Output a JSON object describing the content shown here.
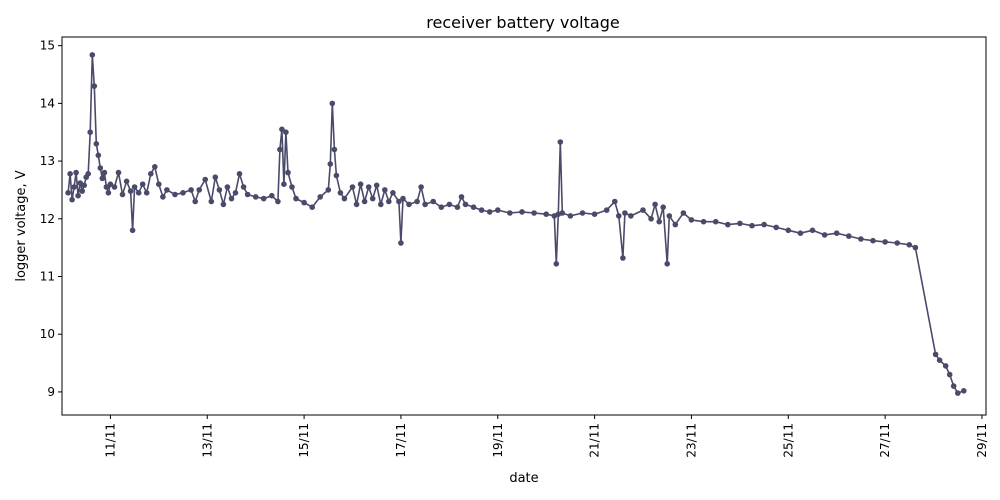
{
  "chart_data": {
    "type": "line",
    "title": "receiver battery voltage",
    "xlabel": "date",
    "ylabel": "logger voltage, V",
    "x_tick_labels": [
      "11/11",
      "13/11",
      "15/11",
      "17/11",
      "19/11",
      "21/11",
      "23/11",
      "25/11",
      "27/11",
      "29/11"
    ],
    "y_ticks": [
      9,
      10,
      11,
      12,
      13,
      14,
      15
    ],
    "xlim": [
      "10/11 00:00",
      "29/11 02:00"
    ],
    "ylim": [
      8.6,
      15.15
    ],
    "grid": false,
    "legend": "none",
    "marker": "circle",
    "colors": {
      "series": "#4a4a6a",
      "axis": "#000000"
    },
    "series": [
      {
        "values": [
          [
            "10/11 03:00",
            12.45
          ],
          [
            "10/11 04:00",
            12.78
          ],
          [
            "10/11 05:00",
            12.33
          ],
          [
            "10/11 06:00",
            12.55
          ],
          [
            "10/11 07:00",
            12.8
          ],
          [
            "10/11 08:00",
            12.4
          ],
          [
            "10/11 09:00",
            12.62
          ],
          [
            "10/11 10:00",
            12.48
          ],
          [
            "10/11 11:00",
            12.58
          ],
          [
            "10/11 12:00",
            12.72
          ],
          [
            "10/11 13:00",
            12.78
          ],
          [
            "10/11 14:00",
            13.5
          ],
          [
            "10/11 15:00",
            14.84
          ],
          [
            "10/11 16:00",
            14.3
          ],
          [
            "10/11 17:00",
            13.3
          ],
          [
            "10/11 18:00",
            13.1
          ],
          [
            "10/11 19:00",
            12.88
          ],
          [
            "10/11 20:00",
            12.7
          ],
          [
            "10/11 21:00",
            12.8
          ],
          [
            "10/11 22:00",
            12.55
          ],
          [
            "10/11 23:00",
            12.45
          ],
          [
            "11/11 00:00",
            12.6
          ],
          [
            "11/11 02:00",
            12.55
          ],
          [
            "11/11 04:00",
            12.8
          ],
          [
            "11/11 06:00",
            12.42
          ],
          [
            "11/11 08:00",
            12.65
          ],
          [
            "11/11 10:00",
            12.48
          ],
          [
            "11/11 11:00",
            11.8
          ],
          [
            "11/11 12:00",
            12.55
          ],
          [
            "11/11 14:00",
            12.45
          ],
          [
            "11/11 16:00",
            12.6
          ],
          [
            "11/11 18:00",
            12.45
          ],
          [
            "11/11 20:00",
            12.78
          ],
          [
            "11/11 22:00",
            12.9
          ],
          [
            "12/11 00:00",
            12.6
          ],
          [
            "12/11 02:00",
            12.38
          ],
          [
            "12/11 04:00",
            12.5
          ],
          [
            "12/11 08:00",
            12.42
          ],
          [
            "12/11 12:00",
            12.45
          ],
          [
            "12/11 16:00",
            12.5
          ],
          [
            "12/11 18:00",
            12.3
          ],
          [
            "12/11 20:00",
            12.5
          ],
          [
            "12/11 23:00",
            12.68
          ],
          [
            "13/11 02:00",
            12.3
          ],
          [
            "13/11 04:00",
            12.72
          ],
          [
            "13/11 06:00",
            12.5
          ],
          [
            "13/11 08:00",
            12.25
          ],
          [
            "13/11 10:00",
            12.55
          ],
          [
            "13/11 12:00",
            12.35
          ],
          [
            "13/11 14:00",
            12.45
          ],
          [
            "13/11 16:00",
            12.78
          ],
          [
            "13/11 18:00",
            12.55
          ],
          [
            "13/11 20:00",
            12.42
          ],
          [
            "14/11 00:00",
            12.38
          ],
          [
            "14/11 04:00",
            12.35
          ],
          [
            "14/11 08:00",
            12.4
          ],
          [
            "14/11 11:00",
            12.3
          ],
          [
            "14/11 12:00",
            13.2
          ],
          [
            "14/11 13:00",
            13.55
          ],
          [
            "14/11 14:00",
            12.6
          ],
          [
            "14/11 15:00",
            13.5
          ],
          [
            "14/11 16:00",
            12.8
          ],
          [
            "14/11 18:00",
            12.55
          ],
          [
            "14/11 20:00",
            12.35
          ],
          [
            "15/11 00:00",
            12.28
          ],
          [
            "15/11 04:00",
            12.2
          ],
          [
            "15/11 08:00",
            12.38
          ],
          [
            "15/11 12:00",
            12.5
          ],
          [
            "15/11 13:00",
            12.95
          ],
          [
            "15/11 14:00",
            14.0
          ],
          [
            "15/11 15:00",
            13.2
          ],
          [
            "15/11 16:00",
            12.75
          ],
          [
            "15/11 18:00",
            12.45
          ],
          [
            "15/11 20:00",
            12.35
          ],
          [
            "16/11 00:00",
            12.55
          ],
          [
            "16/11 02:00",
            12.25
          ],
          [
            "16/11 04:00",
            12.6
          ],
          [
            "16/11 06:00",
            12.3
          ],
          [
            "16/11 08:00",
            12.55
          ],
          [
            "16/11 10:00",
            12.35
          ],
          [
            "16/11 12:00",
            12.58
          ],
          [
            "16/11 14:00",
            12.25
          ],
          [
            "16/11 16:00",
            12.5
          ],
          [
            "16/11 18:00",
            12.3
          ],
          [
            "16/11 20:00",
            12.45
          ],
          [
            "16/11 23:00",
            12.3
          ],
          [
            "17/11 00:00",
            11.58
          ],
          [
            "17/11 01:00",
            12.35
          ],
          [
            "17/11 04:00",
            12.25
          ],
          [
            "17/11 08:00",
            12.3
          ],
          [
            "17/11 10:00",
            12.55
          ],
          [
            "17/11 12:00",
            12.25
          ],
          [
            "17/11 16:00",
            12.3
          ],
          [
            "17/11 20:00",
            12.2
          ],
          [
            "18/11 00:00",
            12.25
          ],
          [
            "18/11 04:00",
            12.2
          ],
          [
            "18/11 06:00",
            12.38
          ],
          [
            "18/11 08:00",
            12.25
          ],
          [
            "18/11 12:00",
            12.2
          ],
          [
            "18/11 16:00",
            12.15
          ],
          [
            "18/11 20:00",
            12.12
          ],
          [
            "19/11 00:00",
            12.15
          ],
          [
            "19/11 06:00",
            12.1
          ],
          [
            "19/11 12:00",
            12.12
          ],
          [
            "19/11 18:00",
            12.1
          ],
          [
            "20/11 00:00",
            12.08
          ],
          [
            "20/11 04:00",
            12.05
          ],
          [
            "20/11 05:00",
            11.22
          ],
          [
            "20/11 06:00",
            12.08
          ],
          [
            "20/11 07:00",
            13.33
          ],
          [
            "20/11 08:00",
            12.1
          ],
          [
            "20/11 12:00",
            12.05
          ],
          [
            "20/11 18:00",
            12.1
          ],
          [
            "21/11 00:00",
            12.08
          ],
          [
            "21/11 06:00",
            12.15
          ],
          [
            "21/11 10:00",
            12.3
          ],
          [
            "21/11 12:00",
            12.05
          ],
          [
            "21/11 14:00",
            11.32
          ],
          [
            "21/11 15:00",
            12.1
          ],
          [
            "21/11 18:00",
            12.05
          ],
          [
            "22/11 00:00",
            12.15
          ],
          [
            "22/11 04:00",
            12.0
          ],
          [
            "22/11 06:00",
            12.25
          ],
          [
            "22/11 08:00",
            11.95
          ],
          [
            "22/11 10:00",
            12.2
          ],
          [
            "22/11 12:00",
            11.22
          ],
          [
            "22/11 13:00",
            12.05
          ],
          [
            "22/11 16:00",
            11.9
          ],
          [
            "22/11 20:00",
            12.1
          ],
          [
            "23/11 00:00",
            11.98
          ],
          [
            "23/11 06:00",
            11.95
          ],
          [
            "23/11 12:00",
            11.95
          ],
          [
            "23/11 18:00",
            11.9
          ],
          [
            "24/11 00:00",
            11.92
          ],
          [
            "24/11 06:00",
            11.88
          ],
          [
            "24/11 12:00",
            11.9
          ],
          [
            "24/11 18:00",
            11.85
          ],
          [
            "25/11 00:00",
            11.8
          ],
          [
            "25/11 06:00",
            11.75
          ],
          [
            "25/11 12:00",
            11.8
          ],
          [
            "25/11 18:00",
            11.72
          ],
          [
            "26/11 00:00",
            11.75
          ],
          [
            "26/11 06:00",
            11.7
          ],
          [
            "26/11 12:00",
            11.65
          ],
          [
            "26/11 18:00",
            11.62
          ],
          [
            "27/11 00:00",
            11.6
          ],
          [
            "27/11 06:00",
            11.58
          ],
          [
            "27/11 12:00",
            11.55
          ],
          [
            "27/11 15:00",
            11.5
          ],
          [
            "28/11 01:00",
            9.65
          ],
          [
            "28/11 03:00",
            9.55
          ],
          [
            "28/11 06:00",
            9.45
          ],
          [
            "28/11 08:00",
            9.3
          ],
          [
            "28/11 10:00",
            9.1
          ],
          [
            "28/11 12:00",
            8.98
          ],
          [
            "28/11 15:00",
            9.02
          ]
        ]
      }
    ]
  }
}
